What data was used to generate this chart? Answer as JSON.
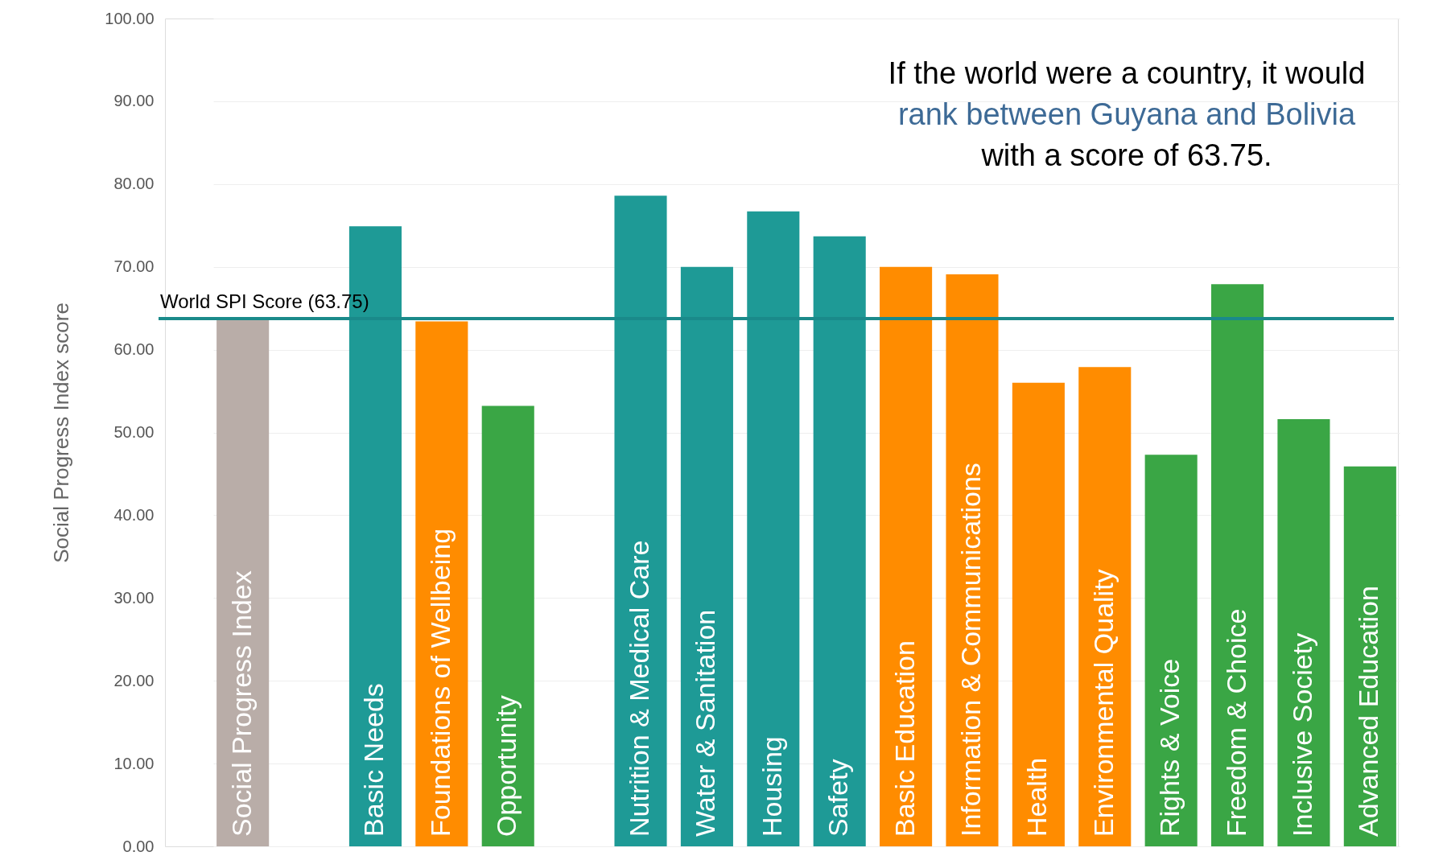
{
  "chart_data": {
    "type": "bar",
    "ylabel": "Social Progress Index score",
    "categories": [
      "Social Progress Index",
      null,
      "Basic Needs",
      "Foundations of Wellbeing",
      "Opportunity",
      null,
      "Nutrition & Medical Care",
      "Water & Sanitation",
      "Housing",
      "Safety",
      "Basic Education",
      "Information & Communications",
      "Health",
      "Environmental Quality",
      "Rights & Voice",
      "Freedom & Choice",
      "Inclusive Society",
      "Advanced Education"
    ],
    "values": [
      63.8,
      null,
      74.9,
      63.4,
      53.2,
      null,
      78.6,
      70.0,
      76.7,
      73.7,
      70.0,
      69.1,
      56.0,
      57.9,
      47.3,
      67.9,
      51.6,
      45.9
    ],
    "colors": [
      "#b9ada8",
      null,
      "#1e9a96",
      "#ff8c00",
      "#3aa645",
      null,
      "#1e9a96",
      "#1e9a96",
      "#1e9a96",
      "#1e9a96",
      "#ff8c00",
      "#ff8c00",
      "#ff8c00",
      "#ff8c00",
      "#3aa645",
      "#3aa645",
      "#3aa645",
      "#3aa645"
    ],
    "ylim": [
      0,
      100
    ],
    "yticks": [
      {
        "value": 0,
        "label": "0.00"
      },
      {
        "value": 10,
        "label": "10.00"
      },
      {
        "value": 20,
        "label": "20.00"
      },
      {
        "value": 30,
        "label": "30.00"
      },
      {
        "value": 40,
        "label": "40.00"
      },
      {
        "value": 50,
        "label": "50.00"
      },
      {
        "value": 60,
        "label": "60.00"
      },
      {
        "value": 70,
        "label": "70.00"
      },
      {
        "value": 80,
        "label": "80.00"
      },
      {
        "value": 90,
        "label": "90.00"
      },
      {
        "value": 100,
        "label": "100.00"
      }
    ],
    "grid": "y",
    "ref_lines": [
      {
        "axis": "y",
        "value": 63.75,
        "label": "World SPI Score (63.75)",
        "color": "#1a8a8a"
      }
    ],
    "annotations": [
      "If the world were a country, it would",
      "rank between Guyana and Bolivia",
      "with a score of 63.75."
    ]
  }
}
